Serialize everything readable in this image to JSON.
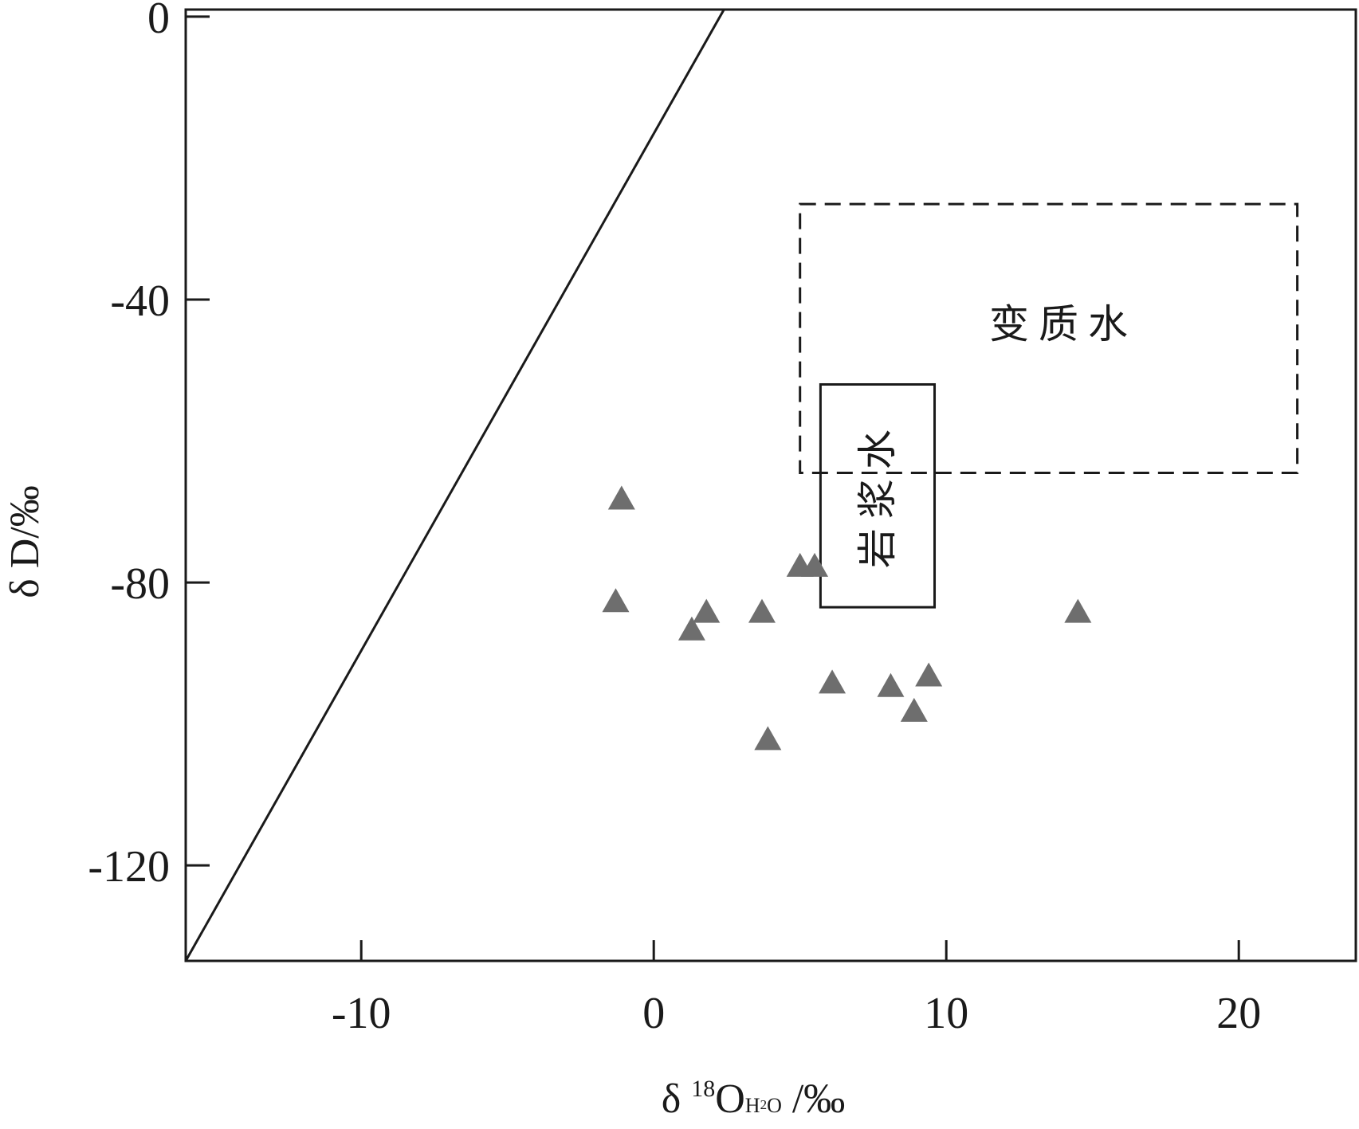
{
  "chart_data": {
    "type": "scatter",
    "title": "",
    "xlabel": {
      "prefix": "δ ",
      "sup": "18",
      "main": "O",
      "sub": "H",
      "sub2": "2",
      "sub3": "O",
      "suffix": " /‰"
    },
    "ylabel": "δ D/‰",
    "xlim": [
      -16,
      24
    ],
    "ylim": [
      -133.5,
      1
    ],
    "x_ticks": [
      -10,
      0,
      10,
      20
    ],
    "x_tick_labels": [
      "-10",
      "0",
      "10",
      "20"
    ],
    "y_ticks": [
      0,
      -40,
      -80,
      -120
    ],
    "y_tick_labels": [
      "0",
      "-40",
      "-80",
      "-120"
    ],
    "grid": false,
    "legend": "none",
    "series": [
      {
        "marker": "triangle",
        "color": "#6e6e6e",
        "x": [
          -1.1,
          -1.3,
          1.3,
          1.8,
          3.7,
          3.9,
          5.0,
          5.5,
          6.1,
          8.1,
          8.9,
          9.4,
          14.5
        ],
        "y": [
          -68,
          -82.5,
          -86.5,
          -84,
          -84,
          -102,
          -77.5,
          -77.5,
          -94,
          -94.5,
          -98,
          -93,
          -84
        ]
      }
    ],
    "lines": [
      {
        "name": "meteoric-water-line",
        "style": "solid",
        "x": [
          -16,
          2.4
        ],
        "y": [
          -133.5,
          1
        ]
      }
    ],
    "regions": [
      {
        "name": "metamorphic-water",
        "label": "变质水",
        "style": "dashed",
        "x": [
          5,
          22
        ],
        "y": [
          -64.5,
          -26.5
        ],
        "label_at": [
          14,
          -43.5
        ],
        "vertical": false
      },
      {
        "name": "magmatic-water",
        "label": "岩浆水",
        "style": "solid",
        "x": [
          5.7,
          9.6
        ],
        "y": [
          -83.5,
          -52
        ],
        "label_at": [
          7.65,
          -67.5
        ],
        "vertical": true
      }
    ]
  }
}
